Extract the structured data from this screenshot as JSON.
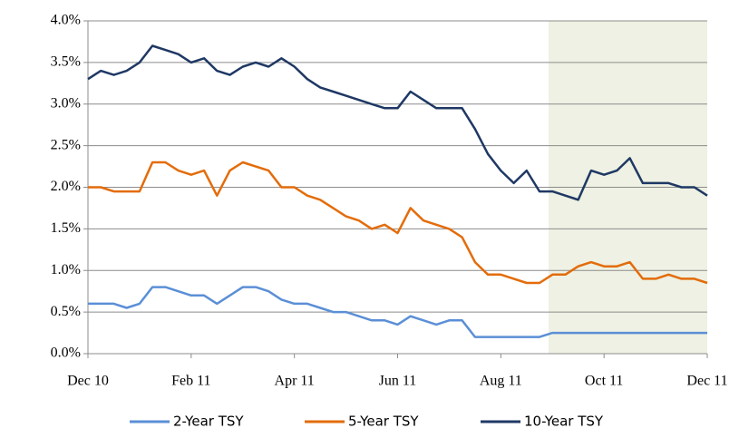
{
  "chart_data": {
    "type": "line",
    "categories": [
      "Dec 10",
      null,
      null,
      null,
      null,
      null,
      null,
      null,
      "Feb 11",
      null,
      null,
      null,
      null,
      null,
      null,
      null,
      "Apr 11",
      null,
      null,
      null,
      null,
      null,
      null,
      null,
      "Jun 11",
      null,
      null,
      null,
      null,
      null,
      null,
      null,
      "Aug 11",
      null,
      null,
      null,
      null,
      null,
      null,
      null,
      "Oct 11",
      null,
      null,
      null,
      null,
      null,
      null,
      null,
      "Dec 11"
    ],
    "series": [
      {
        "name": "2-Year TSY",
        "color": "#5b8fd6",
        "values": [
          0.6,
          0.6,
          0.6,
          0.55,
          0.6,
          0.8,
          0.8,
          0.75,
          0.7,
          0.7,
          0.6,
          0.7,
          0.8,
          0.8,
          0.75,
          0.65,
          0.6,
          0.6,
          0.55,
          0.5,
          0.5,
          0.45,
          0.4,
          0.4,
          0.35,
          0.45,
          0.4,
          0.35,
          0.4,
          0.4,
          0.2,
          0.2,
          0.2,
          0.2,
          0.2,
          0.2,
          0.25,
          0.25,
          0.25,
          0.25,
          0.25,
          0.25,
          0.25,
          0.25,
          0.25,
          0.25,
          0.25,
          0.25,
          0.25
        ]
      },
      {
        "name": "5-Year TSY",
        "color": "#e36c0a",
        "values": [
          2.0,
          2.0,
          1.95,
          1.95,
          1.95,
          2.3,
          2.3,
          2.2,
          2.15,
          2.2,
          1.9,
          2.2,
          2.3,
          2.25,
          2.2,
          2.0,
          2.0,
          1.9,
          1.85,
          1.75,
          1.65,
          1.6,
          1.5,
          1.55,
          1.45,
          1.75,
          1.6,
          1.55,
          1.5,
          1.4,
          1.1,
          0.95,
          0.95,
          0.9,
          0.85,
          0.85,
          0.95,
          0.95,
          1.05,
          1.1,
          1.05,
          1.05,
          1.1,
          0.9,
          0.9,
          0.95,
          0.9,
          0.9,
          0.85
        ]
      },
      {
        "name": "10-Year TSY",
        "color": "#1f3864",
        "values": [
          3.3,
          3.4,
          3.35,
          3.4,
          3.5,
          3.7,
          3.65,
          3.6,
          3.5,
          3.55,
          3.4,
          3.35,
          3.45,
          3.5,
          3.45,
          3.55,
          3.45,
          3.3,
          3.2,
          3.15,
          3.1,
          3.05,
          3.0,
          2.95,
          2.95,
          3.15,
          3.05,
          2.95,
          2.95,
          2.95,
          2.7,
          2.4,
          2.2,
          2.05,
          2.2,
          1.95,
          1.95,
          1.9,
          1.85,
          2.2,
          2.15,
          2.2,
          2.35,
          2.05,
          2.05,
          2.05,
          2.0,
          2.0,
          1.9
        ]
      }
    ],
    "ylim": [
      0,
      4
    ],
    "yticks": [
      {
        "value": 0,
        "label": "0.0%"
      },
      {
        "value": 0.5,
        "label": "0.5%"
      },
      {
        "value": 1,
        "label": "1.0%"
      },
      {
        "value": 1.5,
        "label": "1.5%"
      },
      {
        "value": 2,
        "label": "2.0%"
      },
      {
        "value": 2.5,
        "label": "2.5%"
      },
      {
        "value": 3,
        "label": "3.0%"
      },
      {
        "value": 3.5,
        "label": "3.5%"
      },
      {
        "value": 4,
        "label": "4.0%"
      }
    ],
    "grid": true,
    "legend": "bottom"
  }
}
